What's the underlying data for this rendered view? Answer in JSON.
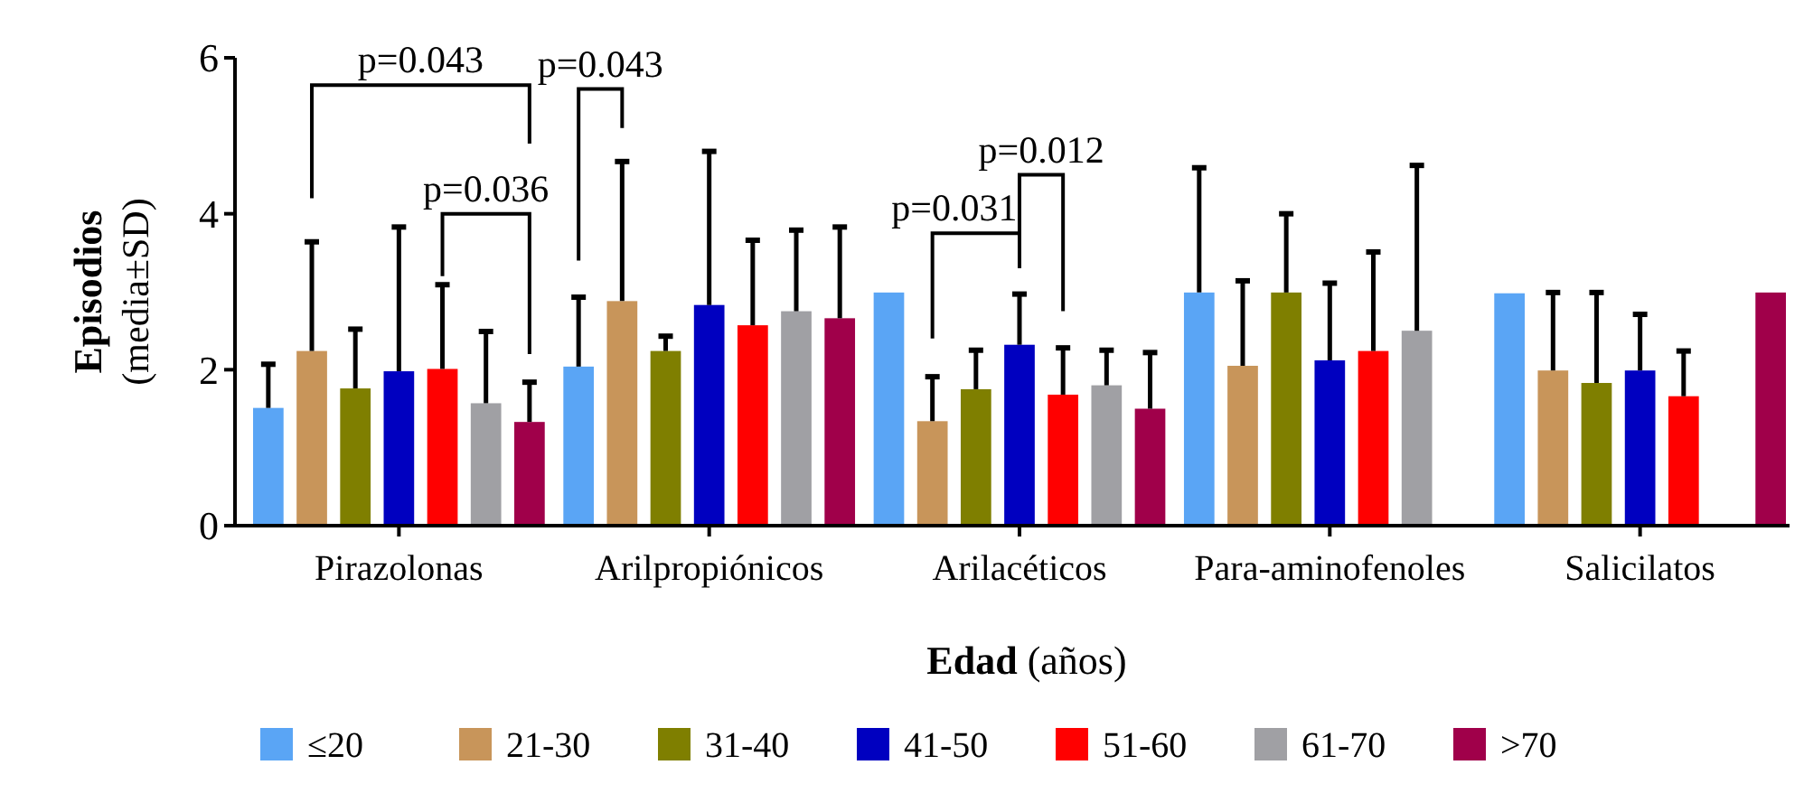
{
  "chart_data": {
    "type": "bar",
    "xlabel": "Edad (años)",
    "ylabel": "Episodios (media±SD)",
    "categories": [
      "Pirazolonas",
      "Arilpropiónicos",
      "Arilacéticos",
      "Para-aminofenoles",
      "Salicilatos"
    ],
    "ylim": [
      0,
      6
    ],
    "yticks": [
      0,
      2,
      4,
      6
    ],
    "grid": false,
    "legend": "bottom",
    "series": [
      {
        "name": "≤20",
        "color": "#5aa5f5",
        "values": [
          1.51,
          2.04,
          2.99,
          2.99,
          2.98
        ],
        "errors": [
          0.56,
          0.89,
          null,
          1.6,
          null
        ]
      },
      {
        "name": "21-30",
        "color": "#c8955a",
        "values": [
          2.24,
          2.88,
          1.34,
          2.05,
          1.99
        ],
        "errors": [
          1.4,
          1.79,
          0.57,
          1.09,
          1.0
        ]
      },
      {
        "name": "31-40",
        "color": "#7f7f00",
        "values": [
          1.76,
          2.24,
          1.75,
          2.99,
          1.83
        ],
        "errors": [
          0.76,
          0.19,
          0.5,
          1.01,
          1.16
        ]
      },
      {
        "name": "41-50",
        "color": "#0000c0",
        "values": [
          1.98,
          2.83,
          2.32,
          2.12,
          1.99
        ],
        "errors": [
          1.85,
          1.97,
          0.65,
          0.99,
          0.72
        ]
      },
      {
        "name": "51-60",
        "color": "#ff0000",
        "values": [
          2.01,
          2.57,
          1.68,
          2.24,
          1.66
        ],
        "errors": [
          1.08,
          1.09,
          0.6,
          1.27,
          0.58
        ]
      },
      {
        "name": "61-70",
        "color": "#a0a0a4",
        "values": [
          1.57,
          2.75,
          1.8,
          2.5,
          null
        ],
        "errors": [
          0.92,
          1.04,
          0.45,
          2.12,
          null
        ]
      },
      {
        "name": ">70",
        "color": "#a0004a",
        "values": [
          1.33,
          2.66,
          1.5,
          null,
          2.99
        ],
        "errors": [
          0.51,
          1.17,
          0.72,
          null,
          null
        ]
      }
    ],
    "annotations": [
      "p=0.043",
      "p=0.036",
      "p=0.043",
      "p=0.031",
      "p=0.012"
    ]
  }
}
